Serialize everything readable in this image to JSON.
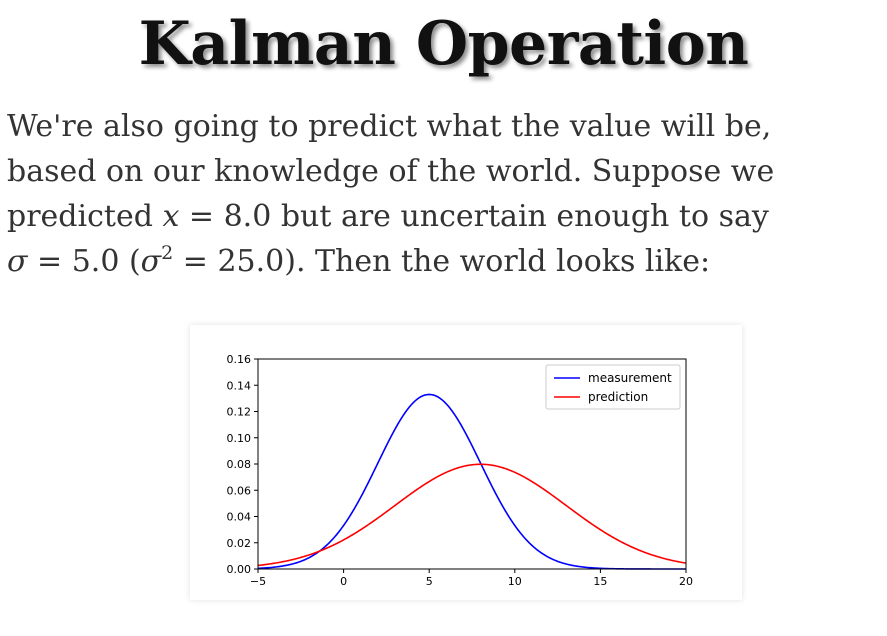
{
  "slide": {
    "title": "Kalman Operation",
    "body_lines": [
      "We're also going to predict what the value will be,",
      "based on our knowledge of the world. Suppose we",
      [
        "predicted ",
        {
          "math": "x"
        },
        " = 8.0 but are uncertain enough to say"
      ],
      [
        {
          "math": "σ"
        },
        " = 5.0 (",
        {
          "math": "σ"
        },
        {
          "sup": "2"
        },
        " = 25.0). Then the world looks like:"
      ]
    ]
  },
  "chart_data": {
    "type": "line",
    "xlim": [
      -5,
      20
    ],
    "ylim": [
      0,
      0.16
    ],
    "xticks": [
      "−5",
      "0",
      "5",
      "10",
      "15",
      "20"
    ],
    "yticks": [
      "0.00",
      "0.02",
      "0.04",
      "0.06",
      "0.08",
      "0.10",
      "0.12",
      "0.14",
      "0.16"
    ],
    "grid": false,
    "legend_position": "top-right",
    "series": [
      {
        "name": "measurement",
        "color": "#0000ff",
        "mean": 5.0,
        "sigma": 3.0
      },
      {
        "name": "prediction",
        "color": "#ff0000",
        "mean": 8.0,
        "sigma": 5.0
      }
    ]
  }
}
